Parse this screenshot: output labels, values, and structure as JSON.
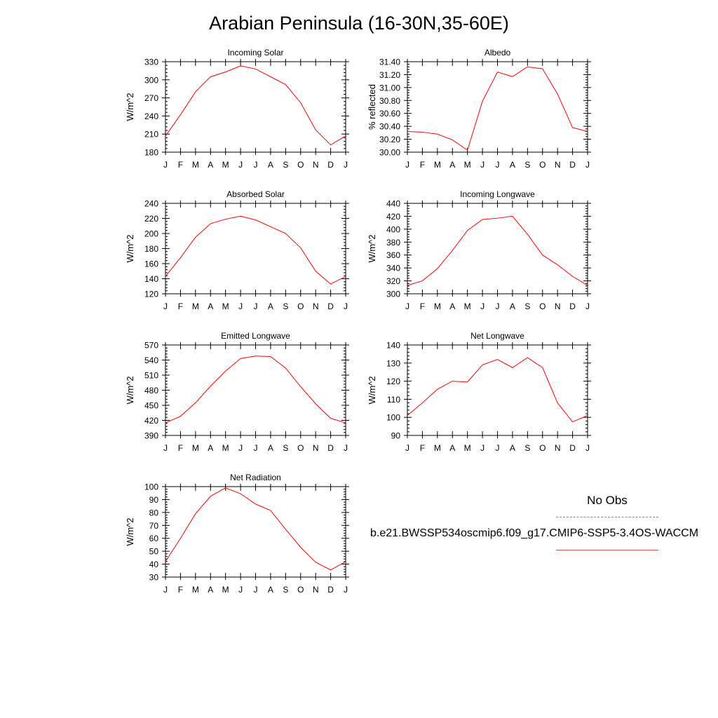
{
  "title": "Arabian Peninsula (16-30N,35-60E)",
  "legend": {
    "obs_label": "No Obs",
    "obs_color": "#7a7ae0",
    "model_label": "b.e21.BWSSP534oscmip6.f09_g17.CMIP6-SSP5-3.4OS-WACCM",
    "model_color": "#ff0000"
  },
  "months": [
    "J",
    "F",
    "M",
    "A",
    "M",
    "J",
    "J",
    "A",
    "S",
    "O",
    "N",
    "D",
    "J"
  ],
  "chart_data": [
    {
      "type": "line",
      "title": "Incoming Solar",
      "ylabel": "W/m^2",
      "ylim": [
        180,
        330
      ],
      "yticks": [
        180,
        210,
        240,
        270,
        300,
        330
      ],
      "ytick_labels": [
        "180",
        "210",
        "240",
        "270",
        "300",
        "330"
      ],
      "categories": [
        "J",
        "F",
        "M",
        "A",
        "M",
        "J",
        "J",
        "A",
        "S",
        "O",
        "N",
        "D",
        "J"
      ],
      "values": [
        207,
        242,
        280,
        305,
        313,
        323,
        318,
        305,
        292,
        262,
        217,
        192,
        207
      ]
    },
    {
      "type": "line",
      "title": "Albedo",
      "ylabel": "% reflected",
      "ylim": [
        30.0,
        31.4
      ],
      "yticks": [
        30.0,
        30.2,
        30.4,
        30.6,
        30.8,
        31.0,
        31.2,
        31.4
      ],
      "ytick_labels": [
        "30.00",
        "30.20",
        "30.40",
        "30.60",
        "30.80",
        "31.00",
        "31.20",
        "31.40"
      ],
      "categories": [
        "J",
        "F",
        "M",
        "A",
        "M",
        "J",
        "J",
        "A",
        "S",
        "O",
        "N",
        "D",
        "J"
      ],
      "values": [
        30.32,
        30.31,
        30.28,
        30.19,
        30.03,
        30.79,
        31.24,
        31.17,
        31.32,
        31.29,
        30.9,
        30.38,
        30.32
      ]
    },
    {
      "type": "line",
      "title": "Absorbed Solar",
      "ylabel": "W/m^2",
      "ylim": [
        120,
        240
      ],
      "yticks": [
        120,
        140,
        160,
        180,
        200,
        220,
        240
      ],
      "ytick_labels": [
        "120",
        "140",
        "160",
        "180",
        "200",
        "220",
        "240"
      ],
      "categories": [
        "J",
        "F",
        "M",
        "A",
        "M",
        "J",
        "J",
        "A",
        "S",
        "O",
        "N",
        "D",
        "J"
      ],
      "values": [
        143,
        168,
        195,
        213,
        219,
        223,
        218,
        209,
        200,
        181,
        150,
        133,
        143
      ]
    },
    {
      "type": "line",
      "title": "Incoming Longwave",
      "ylabel": "W/m^2",
      "ylim": [
        300,
        440
      ],
      "yticks": [
        300,
        320,
        340,
        360,
        380,
        400,
        420,
        440
      ],
      "ytick_labels": [
        "300",
        "320",
        "340",
        "360",
        "380",
        "400",
        "420",
        "440"
      ],
      "categories": [
        "J",
        "F",
        "M",
        "A",
        "M",
        "J",
        "J",
        "A",
        "S",
        "O",
        "N",
        "D",
        "J"
      ],
      "values": [
        313,
        320,
        339,
        367,
        398,
        415,
        417,
        420,
        392,
        360,
        345,
        327,
        313
      ]
    },
    {
      "type": "line",
      "title": "Emitted Longwave",
      "ylabel": "W/m^2",
      "ylim": [
        390,
        570
      ],
      "yticks": [
        390,
        420,
        450,
        480,
        510,
        540,
        570
      ],
      "ytick_labels": [
        "390",
        "420",
        "450",
        "480",
        "510",
        "540",
        "570"
      ],
      "categories": [
        "J",
        "F",
        "M",
        "A",
        "M",
        "J",
        "J",
        "A",
        "S",
        "O",
        "N",
        "D",
        "J"
      ],
      "values": [
        415,
        428,
        455,
        488,
        518,
        543,
        548,
        547,
        524,
        487,
        453,
        424,
        415
      ]
    },
    {
      "type": "line",
      "title": "Net Longwave",
      "ylabel": "W/m^2",
      "ylim": [
        90,
        140
      ],
      "yticks": [
        90,
        100,
        110,
        120,
        130,
        140
      ],
      "ytick_labels": [
        "90",
        "100",
        "110",
        "120",
        "130",
        "140"
      ],
      "categories": [
        "J",
        "F",
        "M",
        "A",
        "M",
        "J",
        "J",
        "A",
        "S",
        "O",
        "N",
        "D",
        "J"
      ],
      "values": [
        101,
        108,
        115.5,
        120,
        119.5,
        129,
        132,
        127.5,
        133,
        127.5,
        108,
        97.5,
        101
      ]
    },
    {
      "type": "line",
      "title": "Net Radiation",
      "ylabel": "W/m^2",
      "ylim": [
        30,
        100
      ],
      "yticks": [
        30,
        40,
        50,
        60,
        70,
        80,
        90,
        100
      ],
      "ytick_labels": [
        "30",
        "40",
        "50",
        "60",
        "70",
        "80",
        "90",
        "100"
      ],
      "categories": [
        "J",
        "F",
        "M",
        "A",
        "M",
        "J",
        "J",
        "A",
        "S",
        "O",
        "N",
        "D",
        "J"
      ],
      "values": [
        42,
        60,
        79,
        92.5,
        99,
        94.5,
        86.5,
        81.5,
        67,
        53,
        41.5,
        35.5,
        42
      ]
    }
  ]
}
